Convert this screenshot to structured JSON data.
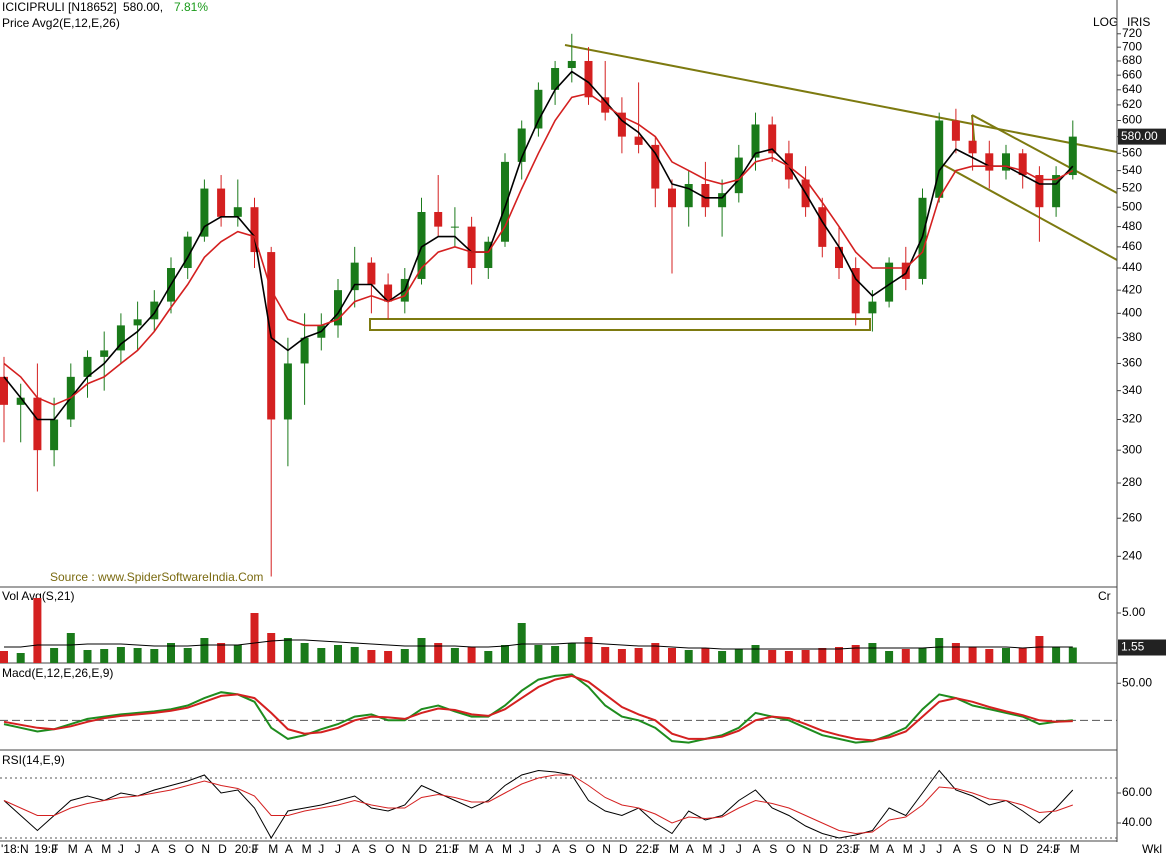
{
  "header": {
    "symbol": "ICICIPRULI [N18652]",
    "price": {
      "value": 580,
      "label": "580.00,"
    },
    "change": {
      "value": 7.81,
      "label": "7.81%"
    },
    "indicator": "Price  Avg2(E,12,E,26)",
    "scale_mode": "LOG",
    "tool": "IRIS",
    "source": "Source : www.SpiderSoftwareIndia.Com",
    "period": "Wkl"
  },
  "chart_data": [
    {
      "type": "candlestick",
      "log": true,
      "ylim": [
        225,
        773
      ],
      "yticks": [
        240,
        260,
        280,
        300,
        320,
        340,
        360,
        380,
        400,
        420,
        440,
        460,
        480,
        500,
        520,
        540,
        560,
        580,
        600,
        620,
        640,
        660,
        680,
        700,
        720
      ],
      "up_color": "#1a7a1a",
      "down_color": "#d42020",
      "open": [
        350,
        330,
        335,
        300,
        320,
        350,
        365,
        370,
        390,
        395,
        410,
        440,
        470,
        520,
        490,
        500,
        455,
        320,
        360,
        380,
        390,
        420,
        445,
        425,
        410,
        430,
        495,
        480,
        480,
        440,
        465,
        550,
        590,
        640,
        670,
        680,
        630,
        610,
        580,
        570,
        520,
        500,
        525,
        500,
        515,
        555,
        595,
        560,
        530,
        500,
        460,
        440,
        400,
        410,
        445,
        430,
        510,
        600,
        575,
        560,
        540,
        560,
        535,
        500,
        535
      ],
      "high": [
        365,
        345,
        360,
        335,
        360,
        370,
        385,
        400,
        410,
        420,
        450,
        475,
        530,
        535,
        530,
        510,
        460,
        380,
        400,
        400,
        430,
        460,
        450,
        435,
        440,
        510,
        535,
        500,
        490,
        470,
        560,
        600,
        650,
        680,
        720,
        700,
        680,
        630,
        650,
        580,
        530,
        540,
        550,
        530,
        570,
        610,
        605,
        575,
        545,
        510,
        480,
        450,
        420,
        450,
        460,
        520,
        610,
        615,
        600,
        575,
        570,
        565,
        545,
        545,
        600
      ],
      "low": [
        305,
        305,
        275,
        290,
        315,
        335,
        340,
        360,
        370,
        385,
        400,
        430,
        465,
        480,
        480,
        440,
        230,
        290,
        330,
        370,
        380,
        405,
        400,
        395,
        400,
        425,
        470,
        460,
        425,
        430,
        460,
        530,
        580,
        620,
        650,
        620,
        600,
        560,
        560,
        500,
        435,
        480,
        490,
        470,
        505,
        540,
        550,
        520,
        490,
        450,
        430,
        390,
        385,
        405,
        420,
        425,
        505,
        560,
        540,
        520,
        530,
        520,
        465,
        490,
        530
      ],
      "close": [
        330,
        335,
        300,
        320,
        350,
        365,
        370,
        390,
        395,
        410,
        440,
        470,
        520,
        490,
        500,
        455,
        320,
        360,
        380,
        390,
        420,
        445,
        425,
        410,
        430,
        495,
        480,
        480,
        440,
        465,
        550,
        590,
        640,
        670,
        680,
        630,
        610,
        580,
        570,
        520,
        500,
        525,
        500,
        515,
        555,
        595,
        560,
        530,
        500,
        460,
        440,
        400,
        410,
        445,
        430,
        510,
        600,
        575,
        560,
        540,
        560,
        535,
        500,
        535,
        580
      ],
      "lines": [
        {
          "color": "#000000",
          "values": [
            350,
            335,
            320,
            320,
            335,
            350,
            360,
            375,
            385,
            400,
            425,
            450,
            480,
            490,
            490,
            470,
            380,
            370,
            380,
            385,
            400,
            425,
            425,
            410,
            420,
            460,
            470,
            470,
            455,
            455,
            500,
            555,
            600,
            640,
            665,
            650,
            625,
            600,
            585,
            560,
            525,
            520,
            510,
            510,
            530,
            560,
            565,
            545,
            515,
            485,
            460,
            430,
            415,
            425,
            435,
            470,
            540,
            565,
            555,
            545,
            545,
            535,
            525,
            525,
            545
          ]
        },
        {
          "color": "#d42020",
          "values": [
            360,
            350,
            335,
            330,
            335,
            345,
            350,
            360,
            370,
            385,
            405,
            425,
            450,
            465,
            475,
            470,
            420,
            395,
            390,
            390,
            395,
            410,
            415,
            410,
            415,
            440,
            455,
            460,
            455,
            455,
            480,
            520,
            560,
            600,
            630,
            635,
            620,
            605,
            595,
            580,
            550,
            540,
            530,
            525,
            530,
            550,
            555,
            545,
            530,
            505,
            480,
            455,
            440,
            440,
            440,
            455,
            510,
            540,
            545,
            545,
            545,
            540,
            530,
            530,
            540
          ]
        }
      ],
      "last": {
        "value": 580,
        "label": "580.00"
      }
    },
    {
      "type": "bar",
      "title": "Vol  Avg(S,21)",
      "unit": "Cr",
      "ylim": [
        0,
        7.5
      ],
      "yticks": [
        {
          "value": 5,
          "label": "5.00"
        }
      ],
      "values": [
        1.2,
        1.0,
        6.5,
        1.5,
        3.0,
        1.3,
        1.4,
        1.6,
        1.5,
        1.4,
        2.0,
        1.5,
        2.5,
        2.0,
        1.8,
        5.0,
        3.0,
        2.5,
        2.0,
        1.5,
        1.8,
        1.6,
        1.3,
        1.2,
        1.4,
        2.5,
        2.0,
        1.5,
        1.6,
        1.2,
        1.8,
        4.0,
        1.8,
        1.7,
        2.0,
        2.6,
        1.6,
        1.4,
        1.5,
        2.0,
        1.5,
        1.3,
        1.5,
        1.2,
        1.4,
        1.8,
        1.3,
        1.2,
        1.3,
        1.5,
        1.6,
        1.8,
        2.0,
        1.2,
        1.4,
        1.5,
        2.5,
        2.0,
        1.6,
        1.4,
        1.5,
        1.5,
        2.7,
        1.6,
        1.55
      ],
      "avg": {
        "color": "#000000",
        "values": [
          1.6,
          1.6,
          1.8,
          1.8,
          1.8,
          1.9,
          1.9,
          1.9,
          1.8,
          1.7,
          1.7,
          1.7,
          1.8,
          1.8,
          1.8,
          2.0,
          2.2,
          2.3,
          2.3,
          2.2,
          2.1,
          2.0,
          1.9,
          1.8,
          1.7,
          1.7,
          1.7,
          1.7,
          1.6,
          1.6,
          1.7,
          1.9,
          1.9,
          1.9,
          2.0,
          2.0,
          1.9,
          1.8,
          1.7,
          1.7,
          1.6,
          1.5,
          1.5,
          1.4,
          1.4,
          1.4,
          1.4,
          1.4,
          1.4,
          1.4,
          1.4,
          1.5,
          1.5,
          1.5,
          1.5,
          1.5,
          1.6,
          1.6,
          1.6,
          1.6,
          1.6,
          1.5,
          1.6,
          1.6,
          1.6
        ]
      },
      "last": {
        "value": 1.55,
        "label": "1.55"
      }
    },
    {
      "type": "line",
      "title": "Macd(E,12,E,26,E,9)",
      "ylim": [
        -40,
        76
      ],
      "yticks": [
        {
          "value": 50,
          "label": "50.00"
        }
      ],
      "hlines": [
        0
      ],
      "series": [
        {
          "color": "#1e8c1e",
          "values": [
            -5,
            -10,
            -15,
            -12,
            -5,
            2,
            5,
            8,
            10,
            12,
            15,
            20,
            30,
            38,
            35,
            25,
            -10,
            -25,
            -20,
            -12,
            -5,
            5,
            8,
            0,
            0,
            15,
            20,
            12,
            5,
            5,
            20,
            40,
            55,
            60,
            62,
            45,
            20,
            5,
            0,
            -10,
            -28,
            -30,
            -25,
            -20,
            -10,
            10,
            5,
            0,
            -10,
            -20,
            -25,
            -30,
            -28,
            -20,
            -10,
            15,
            35,
            30,
            20,
            15,
            10,
            5,
            -5,
            -2,
            0
          ]
        },
        {
          "color": "#d42020",
          "values": [
            -2,
            -6,
            -10,
            -12,
            -8,
            -2,
            3,
            6,
            8,
            10,
            13,
            17,
            25,
            33,
            35,
            30,
            10,
            -12,
            -18,
            -16,
            -10,
            0,
            5,
            4,
            2,
            10,
            16,
            14,
            8,
            6,
            15,
            30,
            45,
            55,
            60,
            52,
            35,
            18,
            8,
            0,
            -18,
            -25,
            -25,
            -22,
            -14,
            0,
            5,
            3,
            -5,
            -14,
            -20,
            -25,
            -27,
            -23,
            -15,
            5,
            25,
            30,
            25,
            18,
            12,
            7,
            0,
            -2,
            -1
          ]
        }
      ]
    },
    {
      "type": "line",
      "title": "RSI(14,E,9)",
      "ylim": [
        28,
        88
      ],
      "yticks": [
        {
          "value": 60,
          "label": "60.00"
        },
        {
          "value": 40,
          "label": "40.00"
        }
      ],
      "hlines": [
        70,
        30
      ],
      "categories": [
        "'18:N",
        null,
        "19:J",
        "F",
        "M",
        "A",
        "M",
        "J",
        "J",
        "A",
        "S",
        "O",
        "N",
        "D",
        "20:J",
        "F",
        "M",
        "A",
        "M",
        "J",
        "J",
        "A",
        "S",
        "O",
        "N",
        "D",
        "21:J",
        "F",
        "M",
        "A",
        "M",
        "J",
        "J",
        "A",
        "S",
        "O",
        "N",
        "D",
        "22:J",
        "F",
        "M",
        "A",
        "M",
        "J",
        "J",
        "A",
        "S",
        "O",
        "N",
        "D",
        "23:J",
        "F",
        "M",
        "A",
        "M",
        "J",
        "J",
        "A",
        "S",
        "O",
        "N",
        "D",
        "24:J",
        "F",
        "M"
      ],
      "series": [
        {
          "color": "#000000",
          "values": [
            55,
            45,
            35,
            45,
            55,
            58,
            55,
            60,
            58,
            62,
            65,
            68,
            72,
            60,
            62,
            50,
            30,
            48,
            50,
            52,
            55,
            58,
            50,
            48,
            52,
            65,
            60,
            55,
            50,
            55,
            65,
            72,
            75,
            74,
            72,
            55,
            48,
            45,
            50,
            40,
            33,
            48,
            42,
            45,
            55,
            62,
            50,
            45,
            38,
            33,
            30,
            32,
            35,
            50,
            45,
            60,
            75,
            62,
            58,
            52,
            55,
            48,
            40,
            50,
            62
          ]
        },
        {
          "color": "#d42020",
          "values": [
            55,
            50,
            45,
            45,
            50,
            53,
            55,
            57,
            58,
            60,
            62,
            65,
            68,
            65,
            63,
            58,
            45,
            45,
            48,
            50,
            52,
            55,
            52,
            50,
            50,
            57,
            59,
            57,
            54,
            54,
            60,
            66,
            70,
            72,
            72,
            65,
            57,
            52,
            50,
            46,
            40,
            44,
            43,
            44,
            50,
            55,
            53,
            50,
            45,
            40,
            35,
            33,
            34,
            42,
            44,
            52,
            64,
            63,
            60,
            56,
            55,
            52,
            47,
            48,
            52
          ]
        }
      ]
    }
  ]
}
